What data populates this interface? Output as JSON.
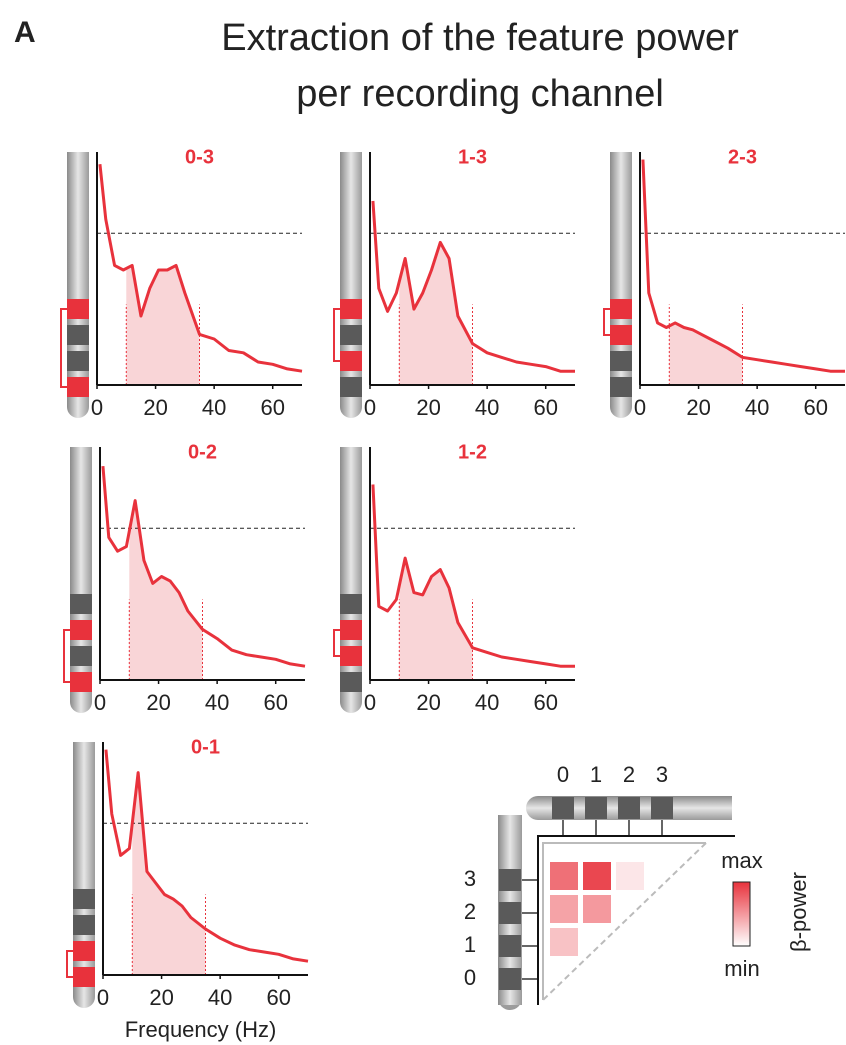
{
  "figure": {
    "panel_label": "A",
    "title_lines": [
      "Extraction of the feature power",
      "per recording channel"
    ]
  },
  "chart_data": [
    {
      "type": "line",
      "title": "0-3",
      "active": [
        0,
        3
      ],
      "xlim": [
        0,
        70
      ],
      "ylim": [
        0,
        1
      ],
      "xticks": [
        0,
        20,
        40,
        60
      ],
      "hline": 0.66,
      "band": [
        10,
        35
      ],
      "x": [
        1,
        3,
        6,
        9,
        12,
        15,
        18,
        21,
        24,
        27,
        30,
        35,
        40,
        45,
        50,
        55,
        60,
        65,
        70
      ],
      "series": [
        {
          "color": "#e8323c",
          "values": [
            0.96,
            0.72,
            0.52,
            0.5,
            0.52,
            0.3,
            0.42,
            0.5,
            0.5,
            0.52,
            0.4,
            0.22,
            0.2,
            0.15,
            0.14,
            0.1,
            0.09,
            0.07,
            0.06
          ]
        }
      ]
    },
    {
      "type": "line",
      "title": "1-3",
      "active": [
        1,
        3
      ],
      "xlim": [
        0,
        70
      ],
      "ylim": [
        0,
        1
      ],
      "xticks": [
        0,
        20,
        40,
        60
      ],
      "hline": 0.66,
      "band": [
        10,
        35
      ],
      "x": [
        1,
        3,
        6,
        9,
        12,
        15,
        18,
        21,
        24,
        27,
        30,
        35,
        40,
        45,
        50,
        55,
        60,
        65,
        70
      ],
      "series": [
        {
          "color": "#e8323c",
          "values": [
            0.8,
            0.42,
            0.32,
            0.4,
            0.55,
            0.33,
            0.4,
            0.5,
            0.62,
            0.55,
            0.3,
            0.18,
            0.14,
            0.12,
            0.1,
            0.09,
            0.08,
            0.06,
            0.06
          ]
        }
      ]
    },
    {
      "type": "line",
      "title": "2-3",
      "active": [
        2,
        3
      ],
      "xlim": [
        0,
        70
      ],
      "ylim": [
        0,
        1
      ],
      "xticks": [
        0,
        20,
        40,
        60
      ],
      "hline": 0.66,
      "band": [
        10,
        35
      ],
      "x": [
        1,
        3,
        6,
        9,
        12,
        15,
        18,
        21,
        24,
        27,
        30,
        35,
        40,
        45,
        50,
        55,
        60,
        65,
        70
      ],
      "series": [
        {
          "color": "#e8323c",
          "values": [
            0.98,
            0.4,
            0.27,
            0.25,
            0.27,
            0.25,
            0.24,
            0.22,
            0.2,
            0.18,
            0.16,
            0.12,
            0.11,
            0.1,
            0.09,
            0.08,
            0.07,
            0.06,
            0.06
          ]
        }
      ]
    },
    {
      "type": "line",
      "title": "0-2",
      "active": [
        0,
        2
      ],
      "xlim": [
        0,
        70
      ],
      "ylim": [
        0,
        1
      ],
      "xticks": [
        0,
        20,
        40,
        60
      ],
      "hline": 0.66,
      "band": [
        10,
        35
      ],
      "x": [
        1,
        3,
        6,
        9,
        12,
        15,
        18,
        21,
        24,
        27,
        30,
        35,
        40,
        45,
        50,
        55,
        60,
        65,
        70
      ],
      "series": [
        {
          "color": "#e8323c",
          "values": [
            0.93,
            0.62,
            0.56,
            0.58,
            0.78,
            0.52,
            0.42,
            0.45,
            0.43,
            0.38,
            0.3,
            0.22,
            0.18,
            0.13,
            0.11,
            0.1,
            0.09,
            0.07,
            0.06
          ]
        }
      ]
    },
    {
      "type": "line",
      "title": "1-2",
      "active": [
        1,
        2
      ],
      "xlim": [
        0,
        70
      ],
      "ylim": [
        0,
        1
      ],
      "xticks": [
        0,
        20,
        40,
        60
      ],
      "hline": 0.66,
      "band": [
        10,
        35
      ],
      "x": [
        1,
        3,
        6,
        9,
        12,
        15,
        18,
        21,
        24,
        27,
        30,
        35,
        40,
        45,
        50,
        55,
        60,
        65,
        70
      ],
      "series": [
        {
          "color": "#e8323c",
          "values": [
            0.85,
            0.32,
            0.3,
            0.35,
            0.53,
            0.38,
            0.37,
            0.45,
            0.48,
            0.4,
            0.25,
            0.14,
            0.12,
            0.1,
            0.09,
            0.08,
            0.07,
            0.06,
            0.06
          ]
        }
      ]
    },
    {
      "type": "line",
      "title": "0-1",
      "active": [
        0,
        1
      ],
      "xlim": [
        0,
        70
      ],
      "ylim": [
        0,
        1
      ],
      "xticks": [
        0,
        20,
        40,
        60
      ],
      "hline": 0.66,
      "band": [
        10,
        35
      ],
      "xlabel": "Frequency (Hz)",
      "x": [
        1,
        3,
        6,
        9,
        12,
        15,
        18,
        21,
        24,
        27,
        30,
        35,
        40,
        45,
        50,
        55,
        60,
        65,
        70
      ],
      "series": [
        {
          "color": "#e8323c",
          "values": [
            0.98,
            0.7,
            0.52,
            0.55,
            0.88,
            0.45,
            0.4,
            0.35,
            0.33,
            0.3,
            0.25,
            0.2,
            0.16,
            0.13,
            0.11,
            0.1,
            0.09,
            0.07,
            0.06
          ]
        }
      ]
    },
    {
      "type": "heatmap",
      "xlabels": [
        "0",
        "1",
        "2",
        "3"
      ],
      "ylabels": [
        "3",
        "2",
        "1",
        "0"
      ],
      "color": "#e8323c",
      "vlim": [
        0,
        1
      ],
      "values": [
        [
          0.7,
          0.9,
          0.12,
          null
        ],
        [
          0.45,
          0.5,
          null,
          null
        ],
        [
          0.3,
          null,
          null,
          null
        ],
        [
          null,
          null,
          null,
          null
        ]
      ],
      "colorbar_max": "max",
      "colorbar_min": "min",
      "colorbar_label": "β-power"
    }
  ]
}
